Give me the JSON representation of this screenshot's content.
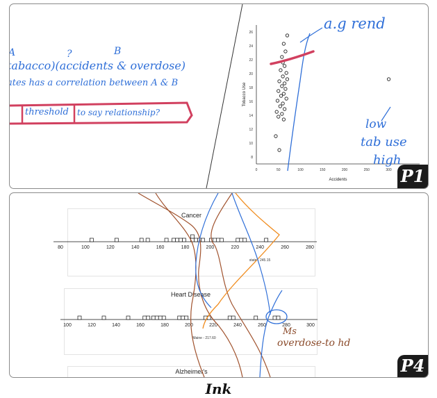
{
  "panel1": {
    "badge": "P1",
    "notes": {
      "label_a": "A",
      "label_q": "?",
      "label_b": "B",
      "line1": "tabacco)(accidents & overdose)",
      "line2": "ates has a correlation between A & B",
      "line3_word": "threshold",
      "line3_rest": "to say relationship?",
      "trend": "a.g rend",
      "low_tab": "low",
      "tab_use": "tab use",
      "high": "high"
    },
    "scatter": {
      "type": "scatter",
      "xlabel": "Accidents",
      "ylabel": "Tobacco Use",
      "x_ticks": [
        "0",
        "50",
        "100",
        "150",
        "200",
        "250",
        "300",
        "350"
      ],
      "y_ticks": [
        "8",
        "10",
        "12",
        "14",
        "16",
        "18",
        "20",
        "22",
        "24",
        "26"
      ],
      "xlim": [
        0,
        370
      ],
      "ylim": [
        7,
        27
      ]
    }
  },
  "panel4": {
    "badge": "P4",
    "cancer": {
      "title": "Cancer",
      "ticks": [
        "80",
        "100",
        "120",
        "140",
        "160",
        "180",
        "200",
        "220",
        "240",
        "260",
        "280"
      ],
      "median_label": "state - 245.15"
    },
    "heart": {
      "title": "Heart Disease",
      "ticks": [
        "100",
        "120",
        "140",
        "160",
        "180",
        "200",
        "220",
        "240",
        "260",
        "280",
        "300"
      ],
      "median_label": "Maine - 217.60"
    },
    "alz": {
      "title": "Alzheimer's"
    },
    "annotation": {
      "line1": "Ms",
      "line2": "overdose-to hd"
    }
  },
  "caption": "Ink",
  "chart_data": [
    {
      "type": "scatter",
      "xlabel": "Accidents",
      "ylabel": "Tobacco Use",
      "xlim": [
        0,
        370
      ],
      "ylim": [
        7,
        27
      ],
      "points": [
        {
          "x": 62,
          "y": 24.3
        },
        {
          "x": 70,
          "y": 25.5
        },
        {
          "x": 66,
          "y": 23.2
        },
        {
          "x": 58,
          "y": 22.4
        },
        {
          "x": 60,
          "y": 21.6
        },
        {
          "x": 64,
          "y": 21.1
        },
        {
          "x": 55,
          "y": 20.5
        },
        {
          "x": 68,
          "y": 20.1
        },
        {
          "x": 60,
          "y": 19.6
        },
        {
          "x": 70,
          "y": 19.2
        },
        {
          "x": 52,
          "y": 18.9
        },
        {
          "x": 64,
          "y": 18.6
        },
        {
          "x": 58,
          "y": 18.2
        },
        {
          "x": 66,
          "y": 17.8
        },
        {
          "x": 50,
          "y": 17.5
        },
        {
          "x": 62,
          "y": 17.1
        },
        {
          "x": 56,
          "y": 16.8
        },
        {
          "x": 68,
          "y": 16.4
        },
        {
          "x": 48,
          "y": 16.1
        },
        {
          "x": 60,
          "y": 15.7
        },
        {
          "x": 54,
          "y": 15.3
        },
        {
          "x": 64,
          "y": 14.9
        },
        {
          "x": 46,
          "y": 14.5
        },
        {
          "x": 58,
          "y": 14.2
        },
        {
          "x": 50,
          "y": 13.8
        },
        {
          "x": 62,
          "y": 13.4
        },
        {
          "x": 44,
          "y": 11.0
        },
        {
          "x": 52,
          "y": 9.0
        },
        {
          "x": 300,
          "y": 19.2
        }
      ]
    },
    {
      "type": "bar",
      "title": "Cancer",
      "categories": [
        "80",
        "100",
        "120",
        "140",
        "160",
        "180",
        "200",
        "220",
        "240",
        "260",
        "280"
      ],
      "bins": [
        {
          "x": 105,
          "count": 1
        },
        {
          "x": 125,
          "count": 1
        },
        {
          "x": 145,
          "count": 1
        },
        {
          "x": 150,
          "count": 1
        },
        {
          "x": 165,
          "count": 1
        },
        {
          "x": 175,
          "count": 4
        },
        {
          "x": 190,
          "count": 5
        },
        {
          "x": 205,
          "count": 4
        },
        {
          "x": 225,
          "count": 3
        },
        {
          "x": 245,
          "count": 1
        }
      ]
    },
    {
      "type": "bar",
      "title": "Heart Disease",
      "categories": [
        "100",
        "120",
        "140",
        "160",
        "180",
        "200",
        "220",
        "240",
        "260",
        "280",
        "300"
      ],
      "bins": [
        {
          "x": 110,
          "count": 1
        },
        {
          "x": 130,
          "count": 1
        },
        {
          "x": 150,
          "count": 1
        },
        {
          "x": 165,
          "count": 2
        },
        {
          "x": 175,
          "count": 4
        },
        {
          "x": 195,
          "count": 3
        },
        {
          "x": 215,
          "count": 2
        },
        {
          "x": 235,
          "count": 2
        },
        {
          "x": 255,
          "count": 1
        },
        {
          "x": 272,
          "count": 2
        }
      ]
    }
  ]
}
